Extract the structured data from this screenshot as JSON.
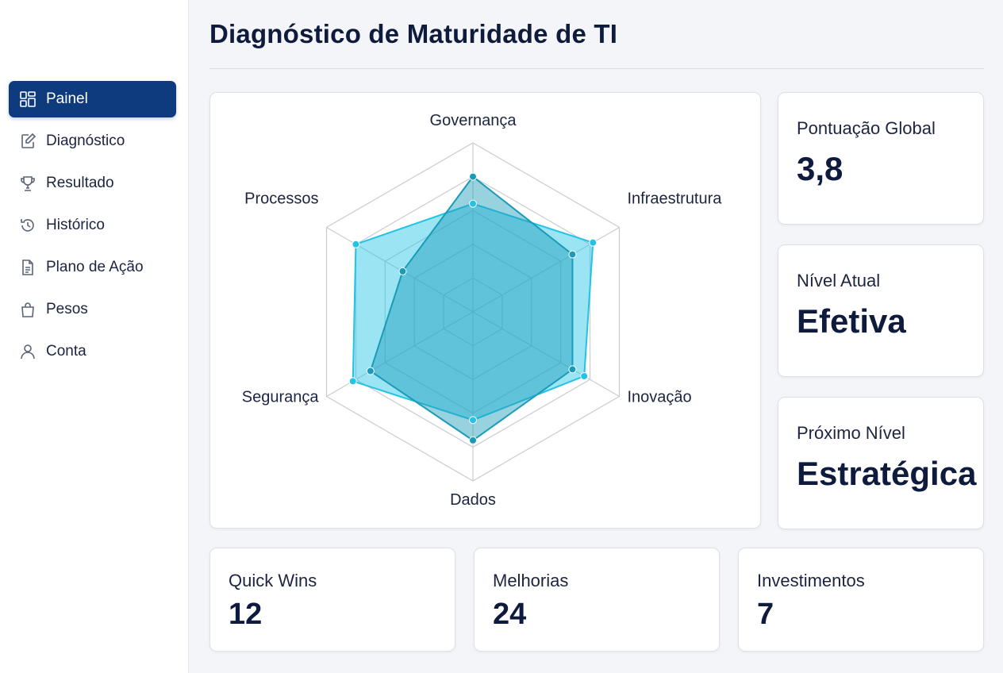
{
  "page": {
    "title": "Diagnóstico de Maturidade de TI"
  },
  "sidebar": {
    "items": [
      {
        "label": "Painel",
        "icon": "dashboard-icon",
        "active": true
      },
      {
        "label": "Diagnóstico",
        "icon": "edit-document-icon",
        "active": false
      },
      {
        "label": "Resultado",
        "icon": "trophy-icon",
        "active": false
      },
      {
        "label": "Histórico",
        "icon": "history-icon",
        "active": false
      },
      {
        "label": "Plano de Ação",
        "icon": "document-icon",
        "active": false
      },
      {
        "label": "Pesos",
        "icon": "bag-icon",
        "active": false
      },
      {
        "label": "Conta",
        "icon": "user-icon",
        "active": false
      }
    ]
  },
  "stats": {
    "global_score": {
      "label": "Pontuação Global",
      "value": "3,8"
    },
    "current_level": {
      "label": "Nível Atual",
      "value": "Efetiva"
    },
    "next_level": {
      "label": "Próximo Nível",
      "value": "Estratégica"
    }
  },
  "summary": {
    "quick_wins": {
      "label": "Quick Wins",
      "value": "12"
    },
    "improvements": {
      "label": "Melhorias",
      "value": "24"
    },
    "investments": {
      "label": "Investimentos",
      "value": "7"
    }
  },
  "colors": {
    "accent": "#0e3a7e",
    "series_light": "#22c3e6",
    "series_dark": "#1a9bb8"
  },
  "chart_data": {
    "type": "radar",
    "categories": [
      "Governança",
      "Infraestrutura",
      "Inovação",
      "Dados",
      "Segurança",
      "Processos"
    ],
    "rmax": 5,
    "rings": 5,
    "series": [
      {
        "values": [
          3.2,
          4.1,
          3.8,
          3.2,
          4.1,
          4.0
        ],
        "color": "#22c3e6"
      },
      {
        "values": [
          4.0,
          3.4,
          3.4,
          3.8,
          3.5,
          2.4
        ],
        "color": "#1a9bb8"
      }
    ]
  }
}
